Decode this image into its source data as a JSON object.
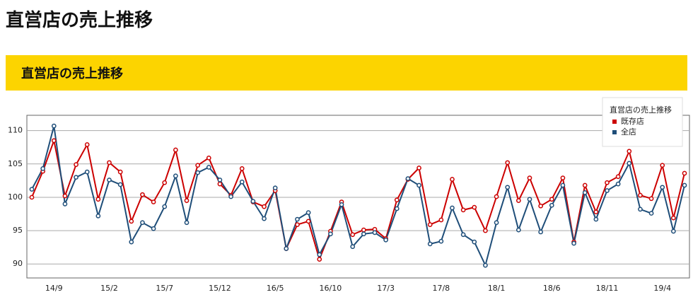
{
  "page_title": "直営店の売上推移",
  "section_title": "直営店の売上推移",
  "chart_data": {
    "type": "line",
    "legend_title": "直営店の売上推移",
    "legend": "top-right",
    "grid": true,
    "categories": [
      null,
      null,
      "14/9",
      null,
      null,
      null,
      null,
      "15/2",
      null,
      null,
      null,
      null,
      "15/7",
      null,
      null,
      null,
      null,
      "15/12",
      null,
      null,
      null,
      null,
      "16/5",
      null,
      null,
      null,
      null,
      "16/10",
      null,
      null,
      null,
      null,
      "17/3",
      null,
      null,
      null,
      null,
      "17/8",
      null,
      null,
      null,
      null,
      "18/1",
      null,
      null,
      null,
      null,
      "18/6",
      null,
      null,
      null,
      null,
      "18/11",
      null,
      null,
      null,
      null,
      "19/4",
      null,
      null
    ],
    "series": [
      {
        "name": "既存店",
        "color": "#cc0000",
        "values": [
          100.0,
          103.9,
          108.5,
          100.2,
          104.9,
          107.9,
          99.7,
          105.2,
          103.8,
          96.4,
          100.4,
          99.3,
          102.2,
          107.1,
          99.5,
          104.8,
          105.9,
          102.0,
          100.3,
          104.3,
          99.3,
          98.6,
          101.0,
          92.3,
          95.9,
          96.4,
          90.7,
          94.9,
          99.3,
          94.4,
          95.1,
          95.2,
          93.8,
          99.6,
          102.7,
          104.4,
          95.9,
          96.6,
          102.7,
          98.1,
          98.5,
          95.0,
          100.1,
          105.2,
          99.5,
          102.9,
          98.7,
          99.7,
          102.9,
          93.3,
          101.8,
          97.8,
          102.2,
          103.1,
          106.9,
          100.3,
          99.8,
          104.8,
          96.9,
          103.6
        ]
      },
      {
        "name": "全店",
        "color": "#1f4e79",
        "values": [
          101.2,
          104.3,
          110.7,
          99.0,
          103.0,
          103.8,
          97.2,
          102.6,
          101.9,
          93.3,
          96.2,
          95.3,
          98.6,
          103.2,
          96.2,
          103.7,
          104.5,
          102.6,
          100.1,
          102.3,
          99.4,
          96.8,
          101.4,
          92.3,
          96.7,
          97.7,
          91.4,
          94.5,
          98.9,
          92.6,
          94.5,
          94.7,
          93.6,
          98.3,
          102.8,
          101.8,
          93.0,
          93.4,
          98.4,
          94.4,
          93.3,
          89.8,
          96.2,
          101.5,
          95.1,
          99.7,
          94.8,
          98.8,
          101.8,
          93.1,
          100.7,
          96.7,
          101.0,
          102.0,
          105.1,
          98.2,
          97.6,
          101.5,
          94.9,
          101.8
        ]
      }
    ],
    "ylim": [
      87.9,
      112.3
    ],
    "yticks": [
      90,
      95,
      100,
      105,
      110
    ]
  }
}
